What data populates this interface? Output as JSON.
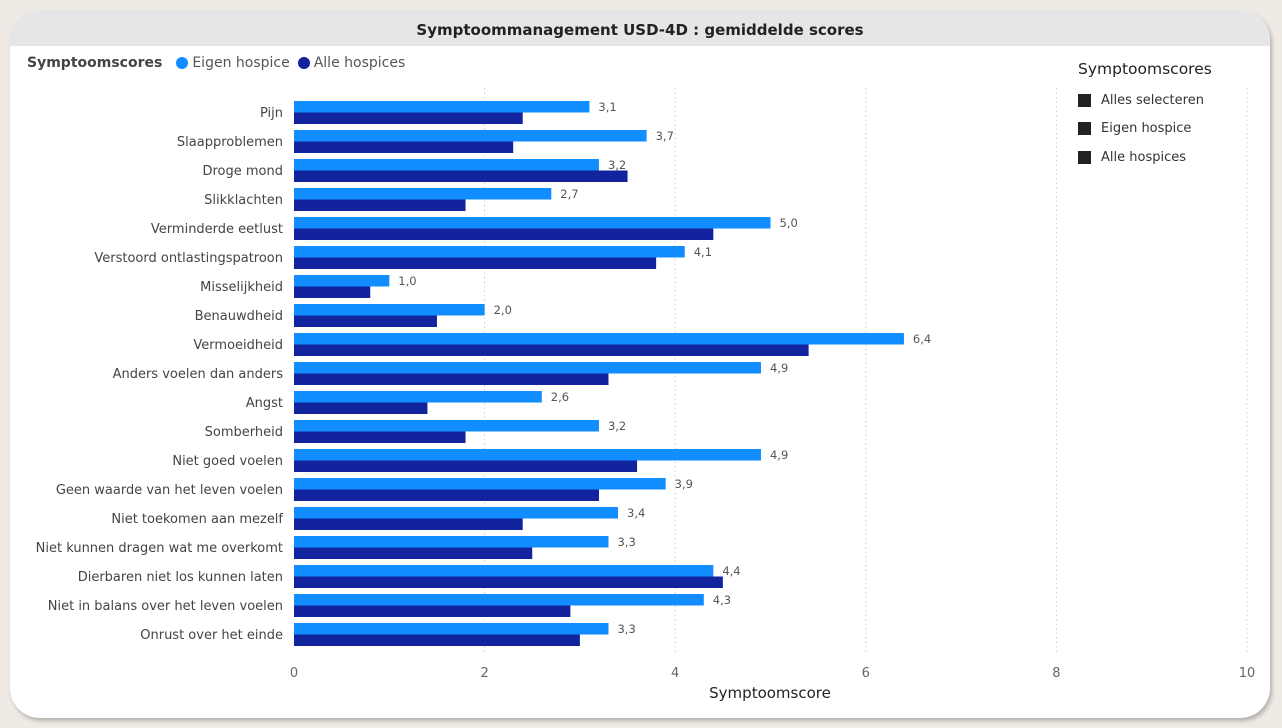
{
  "title": "Symptoommanagement USD-4D : gemiddelde scores",
  "legend": {
    "title": "Symptoomscores",
    "items": [
      {
        "label": "Eigen hospice",
        "color": "#118dff"
      },
      {
        "label": "Alle hospices",
        "color": "#12239e"
      }
    ]
  },
  "slicer": {
    "title": "Symptoomscores",
    "items": [
      "Alles selecteren",
      "Eigen hospice",
      "Alle hospices"
    ]
  },
  "chart_data": {
    "type": "bar",
    "orientation": "horizontal",
    "title": "Symptoommanagement USD-4D : gemiddelde scores",
    "xlabel": "Symptoomscore",
    "ylabel": "",
    "xlim": [
      0,
      10
    ],
    "xticks": [
      0,
      2,
      4,
      6,
      8,
      10
    ],
    "grid": true,
    "legend_position": "top-left",
    "categories": [
      "Pijn",
      "Slaapproblemen",
      "Droge mond",
      "Slikklachten",
      "Verminderde eetlust",
      "Verstoord ontlastingspatroon",
      "Misselijkheid",
      "Benauwdheid",
      "Vermoeidheid",
      "Anders voelen dan anders",
      "Angst",
      "Somberheid",
      "Niet goed voelen",
      "Geen waarde van het leven voelen",
      "Niet toekomen aan mezelf",
      "Niet kunnen dragen wat me overkomt",
      "Dierbaren niet los kunnen laten",
      "Niet in balans over het leven voelen",
      "Onrust over het einde"
    ],
    "series": [
      {
        "name": "Eigen hospice",
        "color": "#118dff",
        "values": [
          3.1,
          3.7,
          3.2,
          2.7,
          5.0,
          4.1,
          1.0,
          2.0,
          6.4,
          4.9,
          2.6,
          3.2,
          4.9,
          3.9,
          3.4,
          3.3,
          4.4,
          4.3,
          3.3
        ],
        "labels": [
          "3,1",
          "3,7",
          "3,2",
          "2,7",
          "5,0",
          "4,1",
          "1,0",
          "2,0",
          "6,4",
          "4,9",
          "2,6",
          "3,2",
          "4,9",
          "3,9",
          "3,4",
          "3,3",
          "4,4",
          "4,3",
          "3,3"
        ]
      },
      {
        "name": "Alle hospices",
        "color": "#12239e",
        "values": [
          2.4,
          2.3,
          3.5,
          1.8,
          4.4,
          3.8,
          0.8,
          1.5,
          5.4,
          3.3,
          1.4,
          1.8,
          3.6,
          3.2,
          2.4,
          2.5,
          4.5,
          2.9,
          3.0
        ]
      }
    ]
  }
}
